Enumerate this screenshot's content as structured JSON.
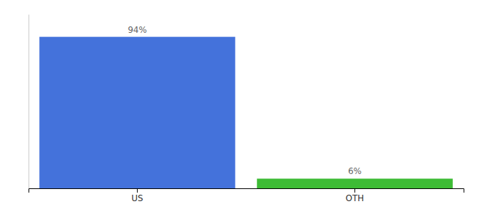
{
  "chart_data": {
    "type": "bar",
    "categories": [
      "US",
      "OTH"
    ],
    "values": [
      94,
      6
    ],
    "value_labels": [
      "94%",
      "6%"
    ],
    "colors": [
      "#4472db",
      "#3dbb35"
    ],
    "ylim": [
      0,
      108
    ],
    "data_labels": true,
    "tick_labels": "x"
  }
}
